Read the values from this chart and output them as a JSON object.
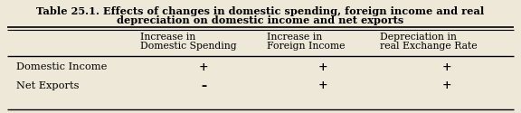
{
  "title_line1": "Table 25.1. Effects of changes in domestic spending, foreign income and real",
  "title_line2": "depreciation on domestic income and net exports",
  "col_headers": [
    [
      "Increase in",
      "Domestic Spending"
    ],
    [
      "Increase in",
      "Foreign Income"
    ],
    [
      "Depreciation in",
      "real Exchange Rate"
    ]
  ],
  "row_labels": [
    "Domestic Income",
    "Net Exports"
  ],
  "data": [
    [
      "+",
      "+",
      "+"
    ],
    [
      "–",
      "+",
      "+"
    ]
  ],
  "bg_color": "#ede8d8",
  "title_fontsize": 8.2,
  "header_fontsize": 7.8,
  "cell_fontsize": 9.0,
  "row_label_fontsize": 8.2
}
